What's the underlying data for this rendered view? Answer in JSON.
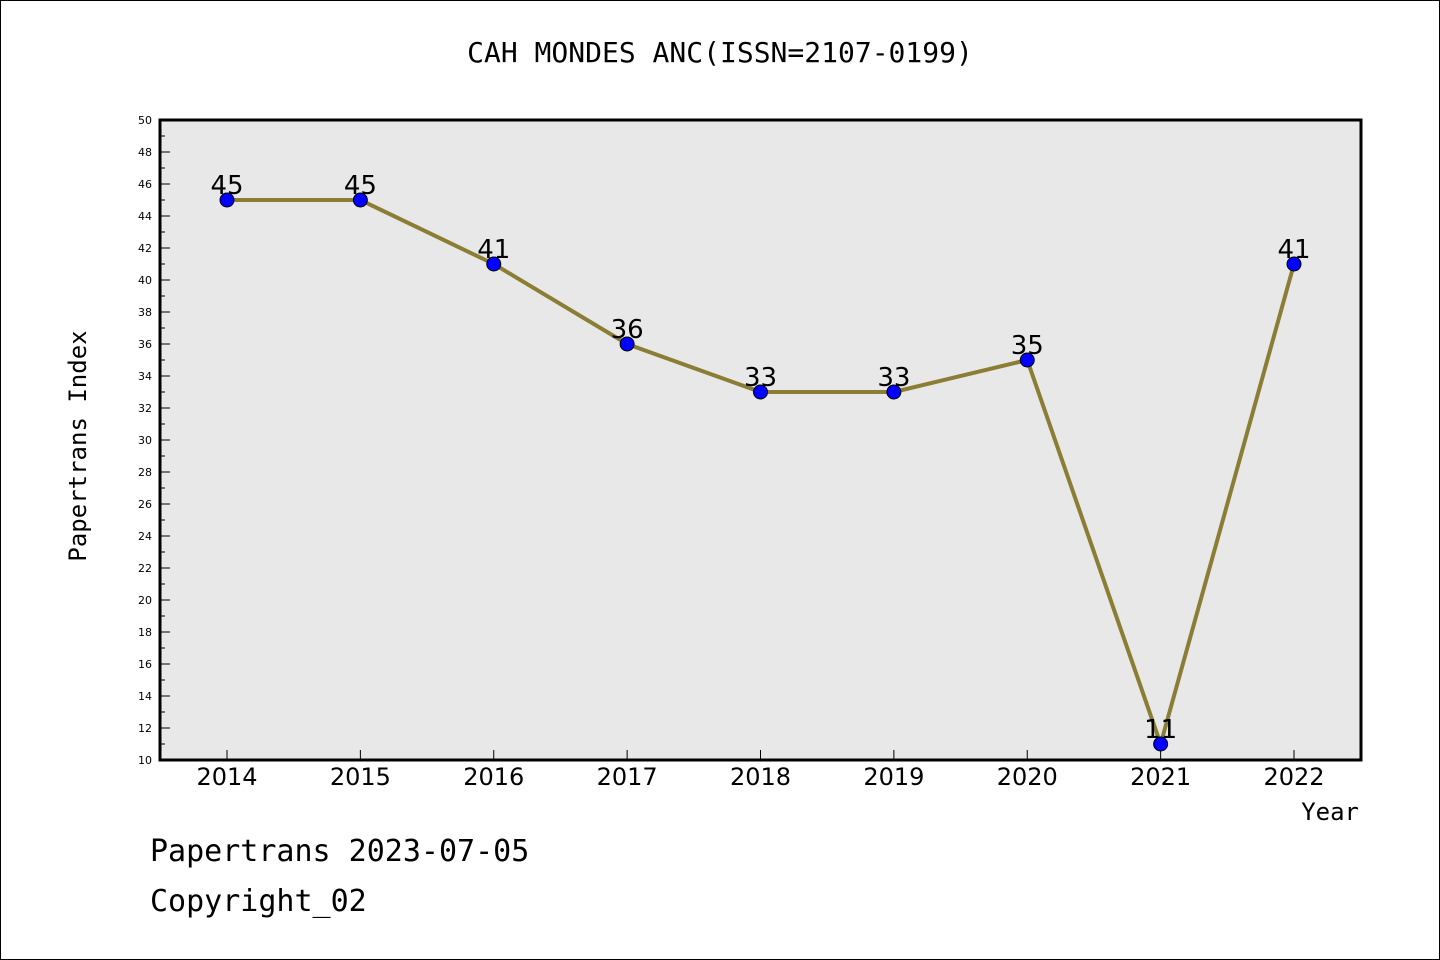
{
  "chart_data": {
    "type": "line",
    "title": "CAH MONDES ANC(ISSN=2107-0199)",
    "xlabel": "Year",
    "ylabel": "Papertrans Index",
    "categories": [
      "2014",
      "2015",
      "2016",
      "2017",
      "2018",
      "2019",
      "2020",
      "2021",
      "2022"
    ],
    "series": [
      {
        "values": [
          45,
          45,
          41,
          36,
          33,
          33,
          35,
          11,
          41
        ]
      }
    ],
    "ylim": [
      10,
      50
    ],
    "ytick_step": 2,
    "grid": false,
    "colors": {
      "line": "#8B7D34",
      "marker": "#0000FF",
      "plot_background": "#E8E8E8"
    }
  },
  "footer": {
    "line1": "Papertrans 2023-07-05",
    "line2": "Copyright_02"
  }
}
